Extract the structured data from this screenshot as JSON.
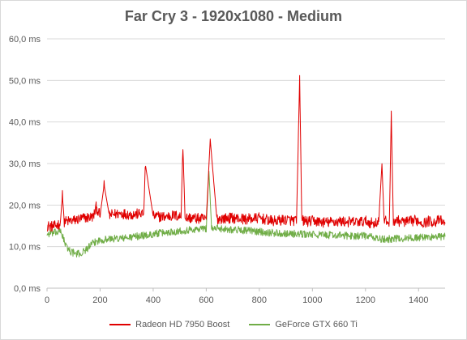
{
  "chart_data": {
    "type": "line",
    "title": "Far Cry 3 - 1920x1080 - Medium",
    "xlabel": "",
    "ylabel": "",
    "xlim": [
      0,
      1500
    ],
    "ylim": [
      0,
      60
    ],
    "x_ticks": [
      0,
      200,
      400,
      600,
      800,
      1000,
      1200,
      1400
    ],
    "y_ticks": [
      0,
      10,
      20,
      30,
      40,
      50,
      60
    ],
    "y_tick_labels": [
      "0,0 ms",
      "10,0 ms",
      "20,0 ms",
      "30,0 ms",
      "40,0 ms",
      "50,0 ms",
      "60,0 ms"
    ],
    "grid": "horizontal",
    "legend": "bottom",
    "series": [
      {
        "name": "Radeon HD 7950 Boost",
        "color": "#e00000",
        "x": [
          0,
          25,
          50,
          58,
          65,
          100,
          140,
          175,
          185,
          200,
          215,
          235,
          250,
          280,
          320,
          365,
          370,
          400,
          440,
          480,
          505,
          512,
          520,
          560,
          600,
          615,
          640,
          700,
          750,
          800,
          850,
          900,
          940,
          952,
          960,
          990,
          1000,
          1050,
          1100,
          1150,
          1200,
          1230,
          1250,
          1262,
          1270,
          1290,
          1297,
          1305,
          1330,
          1360,
          1390,
          1420,
          1440,
          1460,
          1480,
          1500
        ],
        "y": [
          15.0,
          14.8,
          15.6,
          22.3,
          16.0,
          16.3,
          16.9,
          17.2,
          19.5,
          17.5,
          24.8,
          17.5,
          17.8,
          18.0,
          17.7,
          18.0,
          30.0,
          17.3,
          17.2,
          17.5,
          17.2,
          34.5,
          17.0,
          16.8,
          16.6,
          35.7,
          16.7,
          16.9,
          16.6,
          16.9,
          16.1,
          16.5,
          16.2,
          50.5,
          16.3,
          16.0,
          16.2,
          15.8,
          16.1,
          15.9,
          16.1,
          15.6,
          16.0,
          30.0,
          16.2,
          15.9,
          41.5,
          16.4,
          16.1,
          15.9,
          16.4,
          15.7,
          16.2,
          15.9,
          16.4,
          15.5
        ]
      },
      {
        "name": "GeForce GTX 660 Ti",
        "color": "#70ad47",
        "x": [
          0,
          25,
          50,
          60,
          70,
          90,
          110,
          130,
          150,
          170,
          190,
          210,
          250,
          300,
          350,
          390,
          400,
          450,
          500,
          550,
          600,
          610,
          620,
          650,
          700,
          750,
          800,
          850,
          900,
          950,
          1000,
          1050,
          1100,
          1150,
          1200,
          1230,
          1260,
          1300,
          1350,
          1400,
          1450,
          1500
        ],
        "y": [
          13.0,
          13.3,
          13.6,
          12.5,
          10.2,
          8.8,
          8.2,
          8.4,
          9.5,
          10.6,
          11.4,
          11.7,
          11.9,
          12.1,
          12.6,
          12.8,
          13.1,
          13.4,
          13.8,
          14.1,
          14.4,
          28.5,
          14.4,
          14.4,
          14.1,
          13.9,
          13.6,
          13.3,
          13.2,
          13.0,
          12.9,
          12.8,
          12.7,
          12.6,
          12.6,
          12.2,
          11.7,
          11.9,
          12.0,
          12.2,
          12.3,
          12.4
        ]
      }
    ]
  }
}
